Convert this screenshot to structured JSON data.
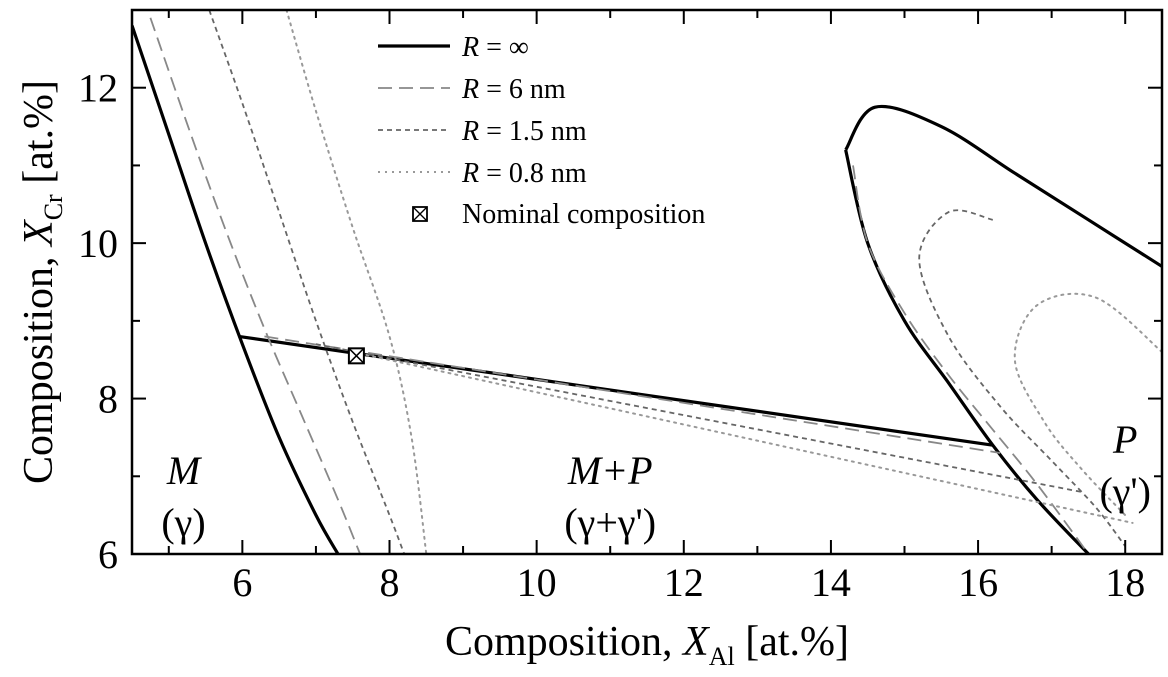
{
  "chart_data": {
    "type": "line",
    "xlabel": {
      "prefix": "Composition, ",
      "symbol": "X",
      "subscript": "Al",
      "suffix": " [at.%]"
    },
    "ylabel": {
      "prefix": "Composition, ",
      "symbol": "X",
      "subscript": "Cr",
      "suffix": " [at.%]"
    },
    "xlim": [
      4.5,
      18.5
    ],
    "ylim": [
      6,
      13
    ],
    "xticks": [
      6,
      8,
      10,
      12,
      14,
      16,
      18
    ],
    "yticks": [
      6,
      8,
      10,
      12
    ],
    "grid": false,
    "legend_placement": "top-center",
    "legend": [
      {
        "symbol": "R",
        "text": " = ∞",
        "style": "solid"
      },
      {
        "symbol": "R",
        "text": " = 6 nm",
        "style": "dashed"
      },
      {
        "symbol": "R",
        "text": " = 1.5 nm",
        "style": "short-dashed"
      },
      {
        "symbol": "R",
        "text": " = 0.8 nm",
        "style": "dotted"
      },
      {
        "symbol": "",
        "text": "Nominal composition",
        "style": "marker"
      }
    ],
    "regions": [
      {
        "name": "M",
        "phase": "(γ)",
        "x": 5.2,
        "y": 6.9
      },
      {
        "name": "M+P",
        "phase": "(γ+γ')",
        "x": 11.0,
        "y": 6.9
      },
      {
        "name": "P",
        "phase": "(γ')",
        "x": 18.0,
        "y": 7.3
      }
    ],
    "nominal_composition": {
      "x": 7.55,
      "y": 8.55
    },
    "series": [
      {
        "legend": 0,
        "color": "#000000",
        "matrix_boundary": [
          [
            4.5,
            12.8
          ],
          [
            5.0,
            11.4
          ],
          [
            5.5,
            10.0
          ],
          [
            6.0,
            8.7
          ],
          [
            6.5,
            7.5
          ],
          [
            7.0,
            6.5
          ],
          [
            7.3,
            6.0
          ]
        ],
        "precipitate_boundary": [
          [
            14.2,
            11.2
          ],
          [
            14.6,
            11.75
          ],
          [
            15.5,
            11.5
          ],
          [
            16.5,
            10.9
          ],
          [
            17.5,
            10.3
          ],
          [
            18.5,
            9.7
          ]
        ],
        "precipitate_lower": [
          [
            14.2,
            11.2
          ],
          [
            14.5,
            10.0
          ],
          [
            15.0,
            9.0
          ],
          [
            15.6,
            8.2
          ],
          [
            16.2,
            7.4
          ],
          [
            16.8,
            6.7
          ],
          [
            17.5,
            6.0
          ]
        ],
        "tie_line": [
          [
            5.95,
            8.8
          ],
          [
            16.2,
            7.4
          ]
        ]
      },
      {
        "legend": 1,
        "color": "#888888",
        "matrix_boundary": [
          [
            4.75,
            12.9
          ],
          [
            5.3,
            11.4
          ],
          [
            5.8,
            10.1
          ],
          [
            6.3,
            8.9
          ],
          [
            6.8,
            7.8
          ],
          [
            7.3,
            6.7
          ],
          [
            7.6,
            6.0
          ]
        ],
        "precipitate_lower": [
          [
            14.3,
            11.0
          ],
          [
            14.5,
            10.0
          ],
          [
            15.0,
            9.1
          ],
          [
            15.6,
            8.3
          ],
          [
            16.2,
            7.6
          ],
          [
            16.8,
            6.9
          ],
          [
            17.5,
            6.0
          ]
        ],
        "tie_line": [
          [
            6.3,
            8.8
          ],
          [
            16.3,
            7.3
          ]
        ]
      },
      {
        "legend": 2,
        "color": "#666666",
        "matrix_boundary": [
          [
            5.55,
            13.0
          ],
          [
            6.0,
            11.8
          ],
          [
            6.5,
            10.4
          ],
          [
            7.0,
            9.0
          ],
          [
            7.5,
            7.7
          ],
          [
            8.0,
            6.5
          ],
          [
            8.2,
            6.0
          ]
        ],
        "precipitate_lower": [
          [
            16.2,
            10.3
          ],
          [
            15.6,
            10.4
          ],
          [
            15.2,
            9.8
          ],
          [
            15.6,
            8.8
          ],
          [
            16.3,
            7.9
          ],
          [
            17.0,
            7.2
          ],
          [
            17.6,
            6.6
          ],
          [
            18.0,
            6.1
          ]
        ],
        "tie_line": [
          [
            7.0,
            8.7
          ],
          [
            17.4,
            6.8
          ]
        ]
      },
      {
        "legend": 3,
        "color": "#999999",
        "matrix_boundary": [
          [
            6.6,
            13.0
          ],
          [
            7.0,
            11.7
          ],
          [
            7.5,
            10.2
          ],
          [
            8.0,
            8.8
          ],
          [
            8.3,
            7.5
          ],
          [
            8.5,
            6.0
          ]
        ],
        "precipitate_lower": [
          [
            18.5,
            8.6
          ],
          [
            17.6,
            9.3
          ],
          [
            16.8,
            9.2
          ],
          [
            16.5,
            8.5
          ],
          [
            16.9,
            7.7
          ],
          [
            17.4,
            7.1
          ],
          [
            18.0,
            6.5
          ]
        ],
        "tie_line": [
          [
            7.5,
            8.6
          ],
          [
            18.1,
            6.4
          ]
        ]
      }
    ]
  }
}
